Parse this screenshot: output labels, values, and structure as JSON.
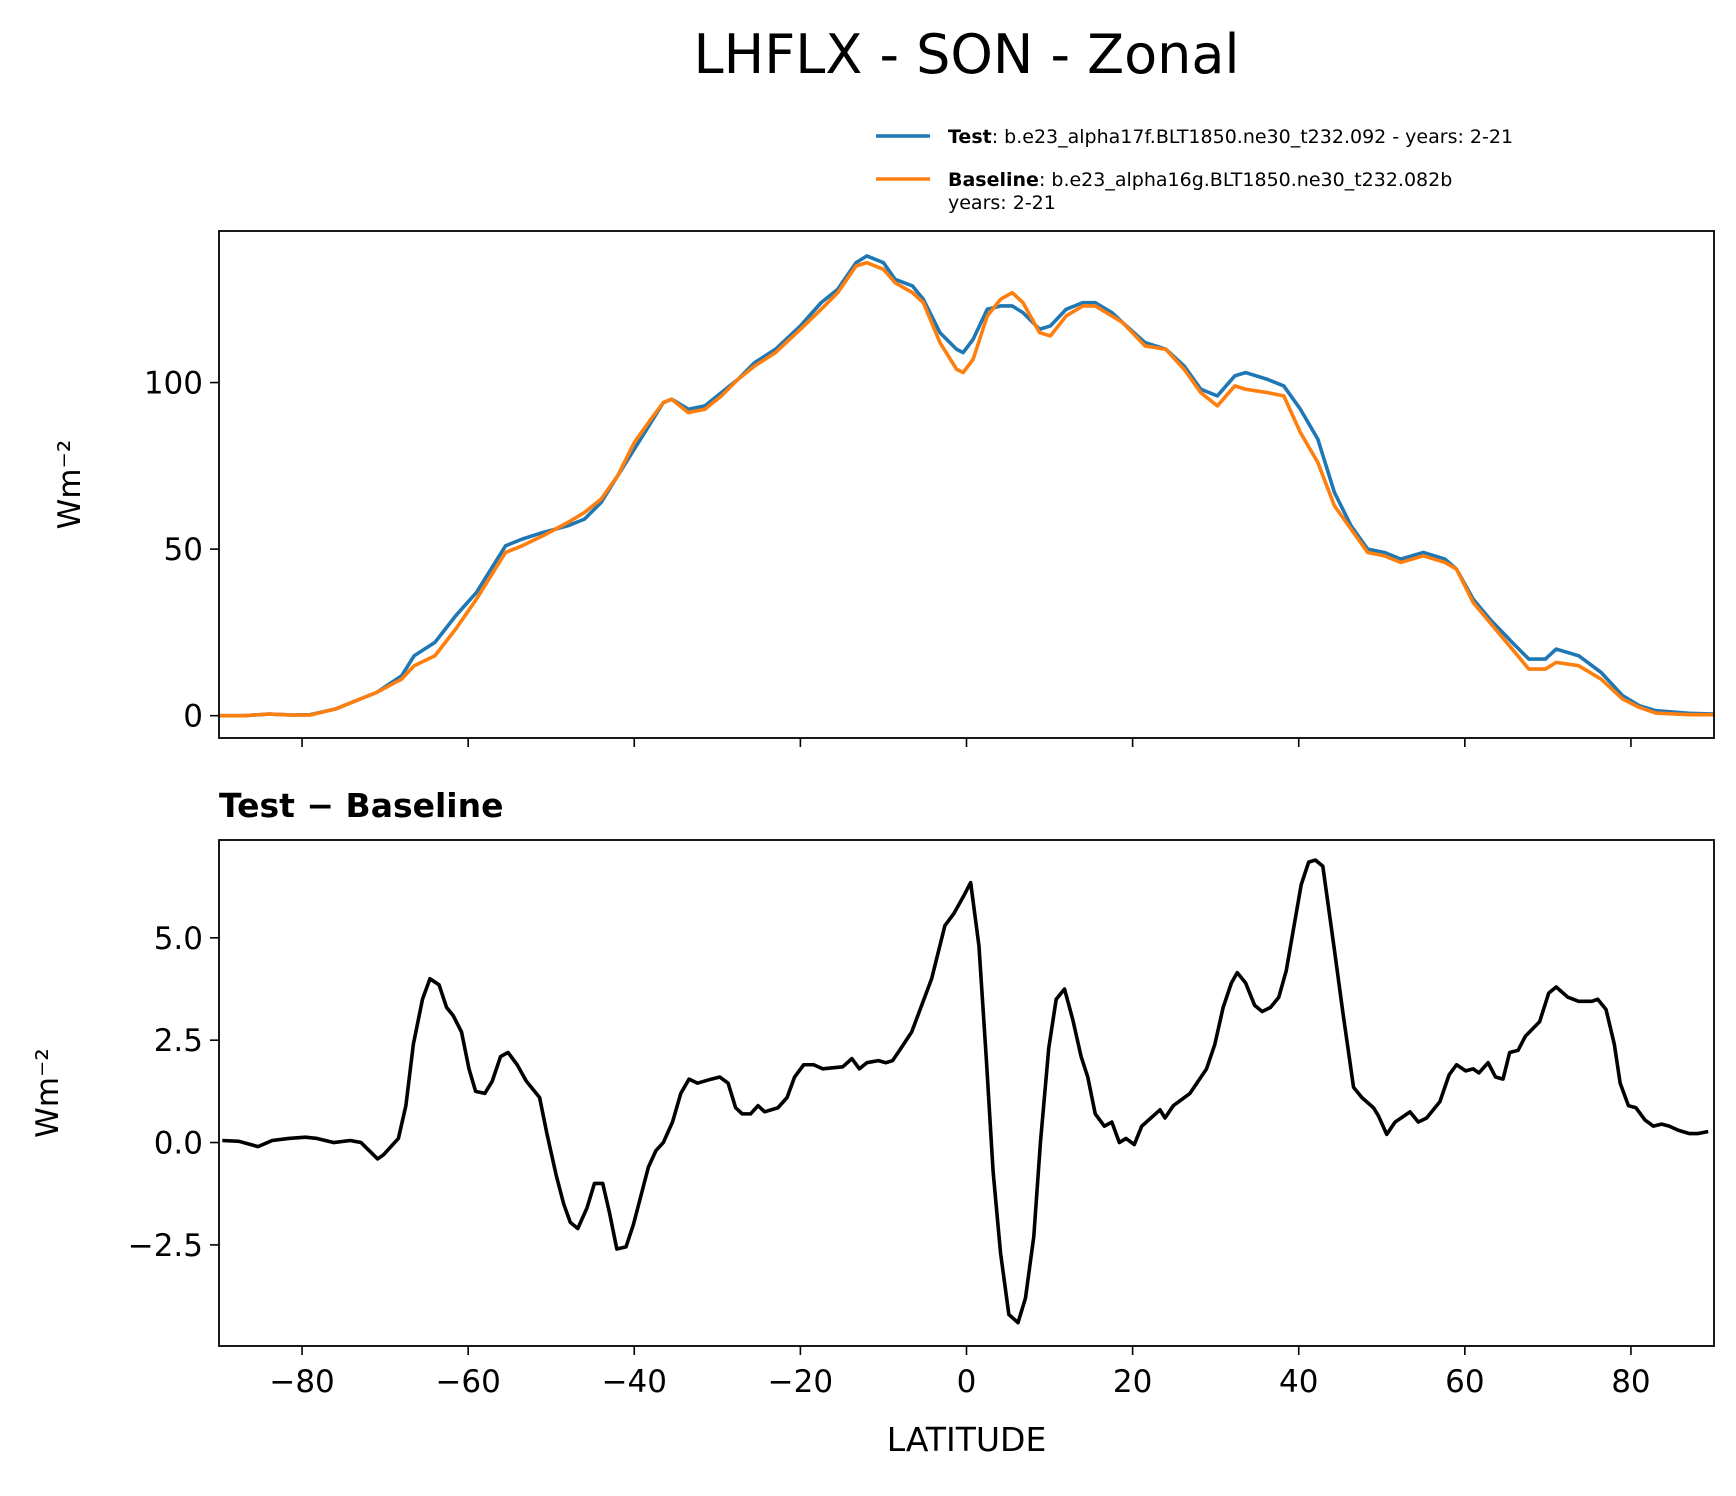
{
  "chart_data": [
    {
      "type": "line",
      "title": "LHFLX - SON - Zonal",
      "ylabel": "Wm⁻²",
      "xlim": [
        -90,
        90
      ],
      "xticks": [
        -80,
        -60,
        -40,
        -20,
        0,
        20,
        40,
        60,
        80
      ],
      "ylim": [
        -6.7,
        145.5
      ],
      "yticks": [
        0,
        50,
        100
      ],
      "x": [
        -90,
        -87,
        -84,
        -81,
        -79,
        -76,
        -73.5,
        -71,
        -68,
        -66.5,
        -64,
        -61.5,
        -59,
        -55.5,
        -53.5,
        -51,
        -48,
        -46,
        -44,
        -42,
        -40,
        -38,
        -36.5,
        -35.5,
        -33.5,
        -31.5,
        -29.5,
        -27.5,
        -25.5,
        -23,
        -20,
        -17.5,
        -15.5,
        -13.3,
        -12,
        -10,
        -8.6,
        -6.5,
        -5.2,
        -3.2,
        -1.2,
        -0.4,
        0.8,
        2.5,
        4.1,
        5.5,
        6.8,
        8.8,
        10.1,
        12,
        14,
        15.5,
        17.5,
        18.8,
        21.5,
        24,
        26.2,
        28.2,
        30.2,
        32.3,
        33.6,
        36.2,
        38.2,
        40.2,
        42.3,
        44.3,
        46.3,
        48.3,
        50.3,
        52.3,
        55,
        57.6,
        59,
        61,
        63,
        65.7,
        67.7,
        69.7,
        71,
        73.7,
        76.4,
        79,
        81,
        83,
        87,
        90
      ],
      "series": [
        {
          "name": "Test",
          "description": [
            ": b.e23_alpha17f.BLT1850.ne30_t232.092 - years: 2-21"
          ],
          "color": "#1f77b4",
          "values": [
            0,
            0,
            0.5,
            0.2,
            0.3,
            2,
            4.5,
            7,
            12,
            18,
            22,
            30,
            37,
            51,
            53,
            55,
            57,
            59,
            64,
            72,
            80,
            88,
            94,
            95,
            92,
            93,
            97,
            101,
            106,
            110,
            117,
            124,
            128,
            136,
            138,
            136,
            131,
            129,
            125,
            115,
            110,
            109,
            113,
            122,
            123,
            123,
            121,
            116,
            117,
            122,
            124,
            124,
            121,
            118,
            112,
            110,
            105,
            98,
            96,
            102,
            103,
            101,
            99,
            92,
            83,
            67,
            57,
            50,
            49,
            47,
            49,
            47,
            44,
            35,
            29,
            22,
            17,
            17,
            20,
            18,
            13,
            6,
            3,
            1.5,
            0.7,
            0.5
          ]
        },
        {
          "name": "Baseline",
          "description": [
            ": b.e23_alpha16g.BLT1850.ne30_t232.082b",
            "years: 2-21"
          ],
          "color": "#ff7f0e",
          "values": [
            0,
            0,
            0.5,
            0.2,
            0.2,
            2,
            4.5,
            7,
            11,
            15,
            18,
            26,
            35,
            49,
            51,
            54,
            58,
            61,
            65,
            72,
            82,
            89,
            94,
            95,
            91,
            92,
            96,
            101,
            105,
            109,
            116,
            122,
            127,
            135,
            136,
            134,
            130,
            127,
            124,
            112,
            104,
            103,
            107,
            120,
            125,
            127,
            124,
            115,
            114,
            120,
            123,
            123,
            120,
            118,
            111,
            110,
            104,
            97,
            93,
            99,
            98,
            97,
            96,
            85,
            76,
            63,
            56,
            49,
            48,
            46,
            48,
            46,
            44,
            34,
            28,
            20,
            14,
            14,
            16,
            15,
            11,
            5,
            2.5,
            0.8,
            0.3,
            0.3
          ]
        }
      ]
    },
    {
      "type": "line",
      "title": "Test − Baseline",
      "ylabel": "Wm⁻²",
      "xlabel": "LATITUDE",
      "xlim": [
        -90,
        90
      ],
      "xticks": [
        {
          "value": -80,
          "label": "−80"
        },
        {
          "value": -60,
          "label": "−60"
        },
        {
          "value": -40,
          "label": "−40"
        },
        {
          "value": -20,
          "label": "−20"
        },
        0,
        20,
        40,
        60,
        80
      ],
      "ylim": [
        -4.97,
        7.39
      ],
      "yticks": [
        {
          "value": -2.5,
          "label": "−2.5"
        },
        {
          "value": 0,
          "label": "0.0"
        },
        {
          "value": 2.5,
          "label": "2.5"
        },
        {
          "value": 5,
          "label": "5.0"
        }
      ],
      "x": [
        -89.6,
        -87.6,
        -85.3,
        -83.6,
        -81.6,
        -79.6,
        -78.2,
        -76.2,
        -74.2,
        -72.9,
        -70.9,
        -70.2,
        -68.4,
        -67.5,
        -66.6,
        -65.5,
        -64.6,
        -63.5,
        -62.6,
        -61.8,
        -60.8,
        -59.9,
        -59.1,
        -58,
        -57.1,
        -56.1,
        -55.2,
        -54.1,
        -53,
        -51.4,
        -50.5,
        -49.4,
        -48.5,
        -47.7,
        -46.8,
        -45.7,
        -44.8,
        -43.8,
        -43,
        -42.1,
        -41,
        -40.1,
        -38.3,
        -37.4,
        -36.5,
        -35.4,
        -34.4,
        -33.4,
        -32.4,
        -30.7,
        -29.7,
        -28.7,
        -27.8,
        -27,
        -26,
        -25.1,
        -24.3,
        -22.7,
        -21.6,
        -20.7,
        -19.6,
        -18.4,
        -17.3,
        -14.9,
        -13.8,
        -12.9,
        -12,
        -10.6,
        -9.7,
        -8.9,
        -7.9,
        -6.6,
        -4.2,
        -2.6,
        -1.5,
        -0.4,
        0.5,
        1.5,
        2.4,
        3.2,
        4.1,
        5.1,
        6.2,
        7.1,
        8.1,
        8.9,
        9.9,
        10.8,
        11.8,
        12.8,
        13.8,
        14.6,
        15.5,
        16.6,
        17.5,
        18.4,
        19.2,
        20.2,
        21.1,
        23.3,
        23.9,
        24.9,
        26.9,
        28.9,
        29.9,
        30.9,
        31.9,
        32.6,
        33.6,
        34.7,
        35.6,
        36.6,
        37.6,
        38.5,
        40.3,
        41.2,
        42,
        42.9,
        44.3,
        45.3,
        46.6,
        47.6,
        49,
        49.6,
        50.6,
        51.6,
        53.4,
        54.4,
        55.4,
        57,
        58.1,
        59,
        60.1,
        61,
        61.7,
        62.8,
        63.7,
        64.6,
        65.4,
        66.4,
        67.3,
        69,
        70.1,
        71,
        72.4,
        73.7,
        75.3,
        76,
        77,
        78,
        78.7,
        79.7,
        80.6,
        81.7,
        82.7,
        83.7,
        84.6,
        85.7,
        87,
        88.1,
        89.3
      ],
      "series": [
        {
          "color": "#000000",
          "values": [
            0.05,
            0.03,
            -0.1,
            0.05,
            0.1,
            0.13,
            0.1,
            0,
            0.05,
            0,
            -0.4,
            -0.3,
            0.1,
            0.9,
            2.4,
            3.5,
            4,
            3.85,
            3.3,
            3.1,
            2.7,
            1.8,
            1.25,
            1.2,
            1.5,
            2.1,
            2.2,
            1.9,
            1.5,
            1.1,
            0.2,
            -0.8,
            -1.5,
            -1.95,
            -2.1,
            -1.6,
            -1,
            -1,
            -1.7,
            -2.6,
            -2.55,
            -2,
            -0.6,
            -0.2,
            0,
            0.5,
            1.2,
            1.55,
            1.45,
            1.55,
            1.6,
            1.45,
            0.85,
            0.7,
            0.7,
            0.9,
            0.75,
            0.85,
            1.1,
            1.6,
            1.9,
            1.9,
            1.8,
            1.85,
            2.05,
            1.8,
            1.95,
            2,
            1.95,
            2,
            2.3,
            2.7,
            4,
            5.3,
            5.6,
            6,
            6.35,
            4.8,
            2,
            -0.7,
            -2.7,
            -4.2,
            -4.4,
            -3.8,
            -2.3,
            0,
            2.3,
            3.5,
            3.75,
            3,
            2.1,
            1.6,
            0.7,
            0.4,
            0.5,
            0,
            0.1,
            -0.05,
            0.4,
            0.8,
            0.6,
            0.9,
            1.2,
            1.8,
            2.4,
            3.3,
            3.9,
            4.15,
            3.9,
            3.35,
            3.2,
            3.3,
            3.55,
            4.2,
            6.3,
            6.85,
            6.9,
            6.75,
            4.7,
            3.2,
            1.35,
            1.1,
            0.85,
            0.65,
            0.2,
            0.5,
            0.75,
            0.5,
            0.6,
            1,
            1.65,
            1.9,
            1.75,
            1.8,
            1.7,
            1.95,
            1.6,
            1.55,
            2.2,
            2.25,
            2.6,
            2.95,
            3.65,
            3.8,
            3.55,
            3.45,
            3.45,
            3.5,
            3.25,
            2.4,
            1.45,
            0.9,
            0.85,
            0.55,
            0.4,
            0.45,
            0.4,
            0.3,
            0.22,
            0.22,
            0.27
          ]
        }
      ]
    }
  ]
}
